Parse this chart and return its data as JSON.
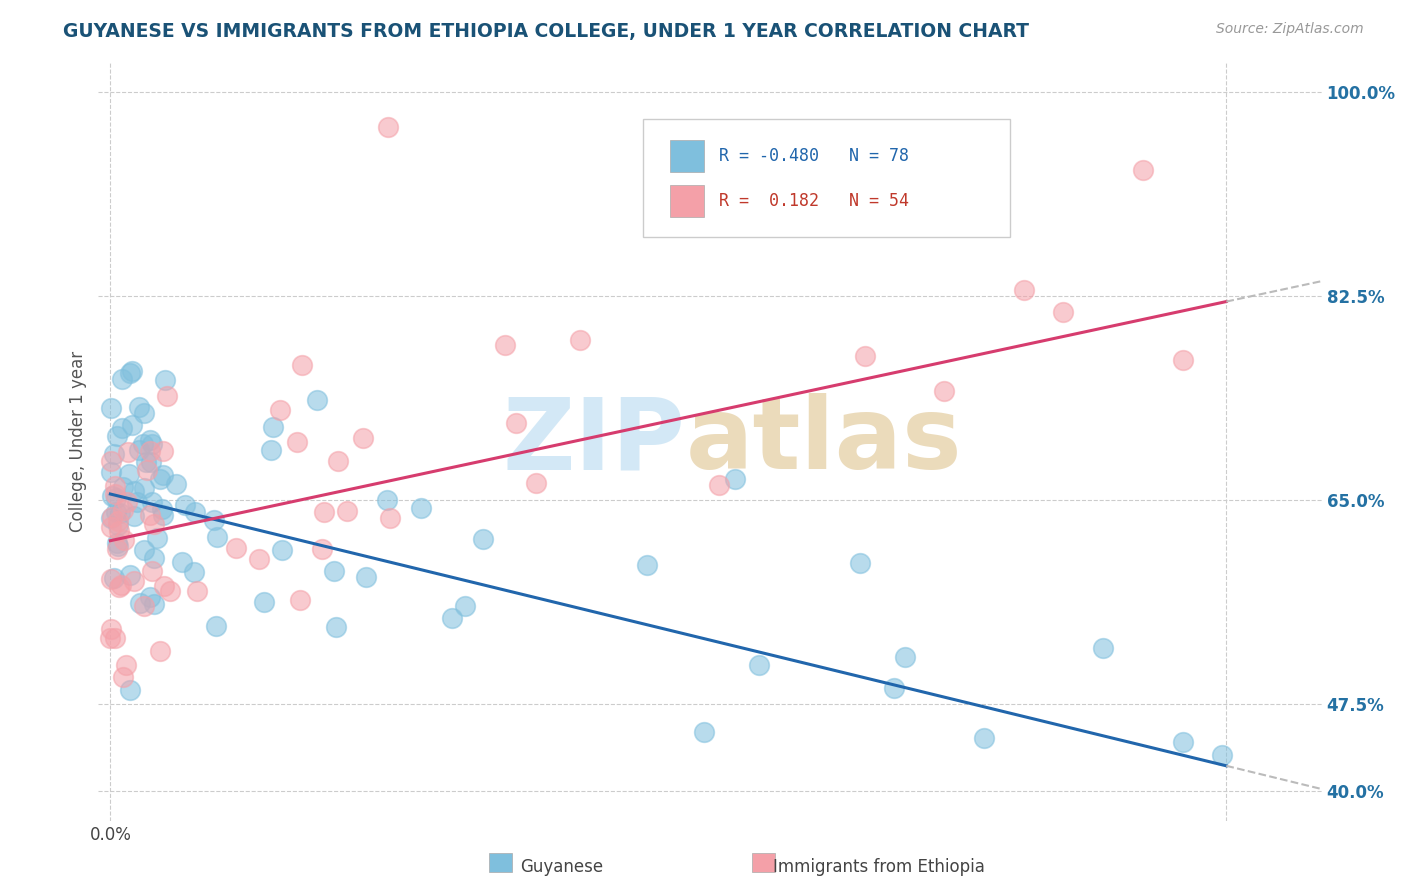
{
  "title": "GUYANESE VS IMMIGRANTS FROM ETHIOPIA COLLEGE, UNDER 1 YEAR CORRELATION CHART",
  "source": "Source: ZipAtlas.com",
  "ylabel": "College, Under 1 year",
  "xlim": [
    -0.003,
    0.305
  ],
  "ylim": [
    0.375,
    1.025
  ],
  "x_tick_val": 0.0,
  "x_tick_label": "0.0%",
  "y_ticks_right": [
    0.4,
    0.475,
    0.65,
    0.825,
    1.0
  ],
  "y_tick_labels_right": [
    "40.0%",
    "47.5%",
    "65.0%",
    "82.5%",
    "100.0%"
  ],
  "guyanese_color": "#7fbfdd",
  "ethiopia_color": "#f4a0a8",
  "guyanese_line_color": "#2166ac",
  "ethiopia_line_color": "#d63c6e",
  "title_color": "#1a5276",
  "source_color": "#999999",
  "right_tick_color": "#2471a3",
  "grid_color": "#cccccc",
  "legend_box_color": "#e8e8e8",
  "legend_text_blue": "#2166ac",
  "legend_text_red": "#c0392b",
  "watermark_blue": "#cce5f5",
  "watermark_tan": "#e8d5b0",
  "dashed_line_color": "#bbbbbb",
  "guy_trend_x0": 0.0,
  "guy_trend_y0": 0.655,
  "guy_trend_x1": 0.281,
  "guy_trend_y1": 0.422,
  "eth_trend_x0": 0.0,
  "eth_trend_y0": 0.615,
  "eth_trend_x1": 0.281,
  "eth_trend_y1": 0.82,
  "scatter_xlim_main": 0.281,
  "scatter_xlim_dash": 0.305
}
